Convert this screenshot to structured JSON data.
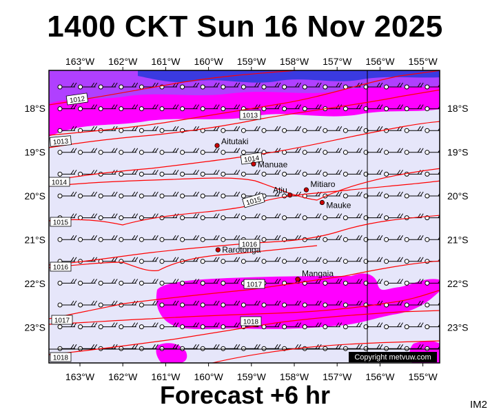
{
  "title": "1400 CKT Sun 16 Nov 2025",
  "footer": "Forecast +6 hr",
  "image_code": "IM2",
  "copyright": "Copyright metvuw.com",
  "axes": {
    "lon_labels": [
      "163°W",
      "162°W",
      "161°W",
      "160°W",
      "159°W",
      "158°W",
      "157°W",
      "156°W",
      "155°W"
    ],
    "lat_labels": [
      "18°S",
      "19°S",
      "20°S",
      "21°S",
      "22°S",
      "23°S"
    ]
  },
  "places": [
    {
      "name": "Aitutaki",
      "lon": -159.8,
      "lat": -18.85
    },
    {
      "name": "Manuae",
      "lon": -158.95,
      "lat": -19.27
    },
    {
      "name": "Atiu",
      "lon": -158.1,
      "lat": -19.98
    },
    {
      "name": "Mitiaro",
      "lon": -157.72,
      "lat": -19.86
    },
    {
      "name": "Mauke",
      "lon": -157.35,
      "lat": -20.15
    },
    {
      "name": "Rarotonga",
      "lon": -159.78,
      "lat": -21.23
    },
    {
      "name": "Mangaia",
      "lon": -157.92,
      "lat": -21.9
    }
  ],
  "isobars": [
    {
      "label": "1012"
    },
    {
      "label": "1013"
    },
    {
      "label": "1013"
    },
    {
      "label": "1014"
    },
    {
      "label": "1014"
    },
    {
      "label": "1015"
    },
    {
      "label": "1015"
    },
    {
      "label": "1016"
    },
    {
      "label": "1016"
    },
    {
      "label": "1017"
    },
    {
      "label": "1017"
    },
    {
      "label": "1018"
    },
    {
      "label": "1018"
    }
  ],
  "colors": {
    "ocean": "#e6e6fa",
    "rain_magenta": "#ff00ff",
    "rain_violet": "#9a32ff",
    "rain_blue": "#2f2fdf",
    "isobar": "#ff0000",
    "place_dot": "#cc0000"
  }
}
